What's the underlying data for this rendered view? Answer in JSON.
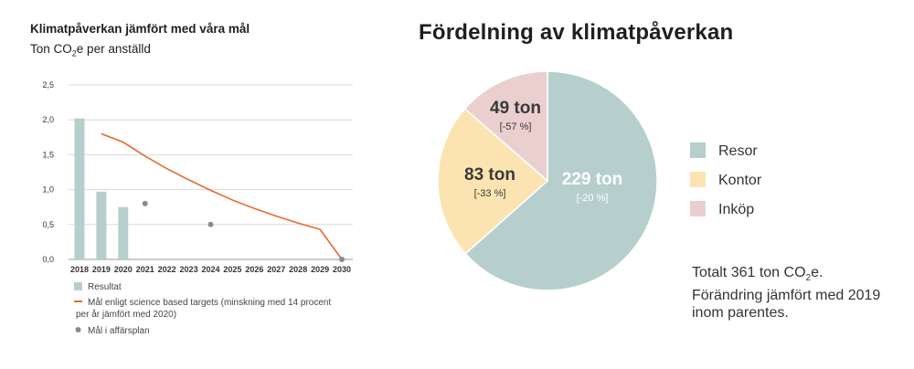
{
  "left": {
    "title": "Klimatpåverkan jämfört med våra mål",
    "subtitle_prefix": "Ton CO",
    "subtitle_sub": "2",
    "subtitle_suffix": "e per anställd"
  },
  "right": {
    "title": "Fördelning av klimatpåverkan",
    "note_prefix": "Totalt 361 ton CO",
    "note_sub": "2",
    "note_suffix": "e.",
    "note_line2": "Förändring jämfört med 2019",
    "note_line3": "inom parentes."
  },
  "chart_data": [
    {
      "type": "bar",
      "title": "Klimatpåverkan jämfört med våra mål",
      "categories": [
        "2018",
        "2019",
        "2020",
        "2021",
        "2022",
        "2023",
        "2024",
        "2025",
        "2026",
        "2027",
        "2028",
        "2029",
        "2030"
      ],
      "y_ticks": [
        "0,0",
        "0,5",
        "1,0",
        "1,5",
        "2,0",
        "2,5"
      ],
      "ylim": [
        0,
        2.5
      ],
      "series": [
        {
          "name": "Resultat",
          "kind": "bar",
          "color": "#b6cfcd",
          "points": [
            [
              "2018",
              2.02
            ],
            [
              "2019",
              0.97
            ],
            [
              "2020",
              0.75
            ]
          ]
        },
        {
          "name": "Mål enligt science based targets (minskning med 14 procent per år jämfört med 2020)",
          "name_line1": "Mål enligt science based targets (minskning med 14 procent",
          "name_line2": "per år jämfört med 2020)",
          "kind": "line",
          "color": "#e8692c",
          "points": [
            [
              "2019",
              1.8
            ],
            [
              "2020",
              1.68
            ],
            [
              "2021",
              1.48
            ],
            [
              "2022",
              1.3
            ],
            [
              "2023",
              1.14
            ],
            [
              "2024",
              0.99
            ],
            [
              "2025",
              0.85
            ],
            [
              "2026",
              0.73
            ],
            [
              "2027",
              0.62
            ],
            [
              "2028",
              0.52
            ],
            [
              "2029",
              0.43
            ],
            [
              "2030",
              0.0
            ]
          ]
        },
        {
          "name": "Mål i affärsplan",
          "kind": "scatter",
          "color": "#8a8a8a",
          "points": [
            [
              "2021",
              0.8
            ],
            [
              "2024",
              0.5
            ],
            [
              "2030",
              0.0
            ]
          ]
        }
      ],
      "grid": true,
      "legend_position": "bottom"
    },
    {
      "type": "pie",
      "title": "Fördelning av klimatpåverkan",
      "slices": [
        {
          "name": "Resor",
          "value": 229,
          "label": "229 ton",
          "change": "[-20 %]",
          "color": "#b6cfcd",
          "text_color": "#ffffff"
        },
        {
          "name": "Kontor",
          "value": 83,
          "label": "83 ton",
          "change": "[-33 %]",
          "color": "#fbe4b1",
          "text_color": "#3a3a3a"
        },
        {
          "name": "Inköp",
          "value": 49,
          "label": "49 ton",
          "change": "[-57 %]",
          "color": "#ebcfcf",
          "text_color": "#3a3a3a"
        }
      ],
      "legend_position": "right"
    }
  ]
}
